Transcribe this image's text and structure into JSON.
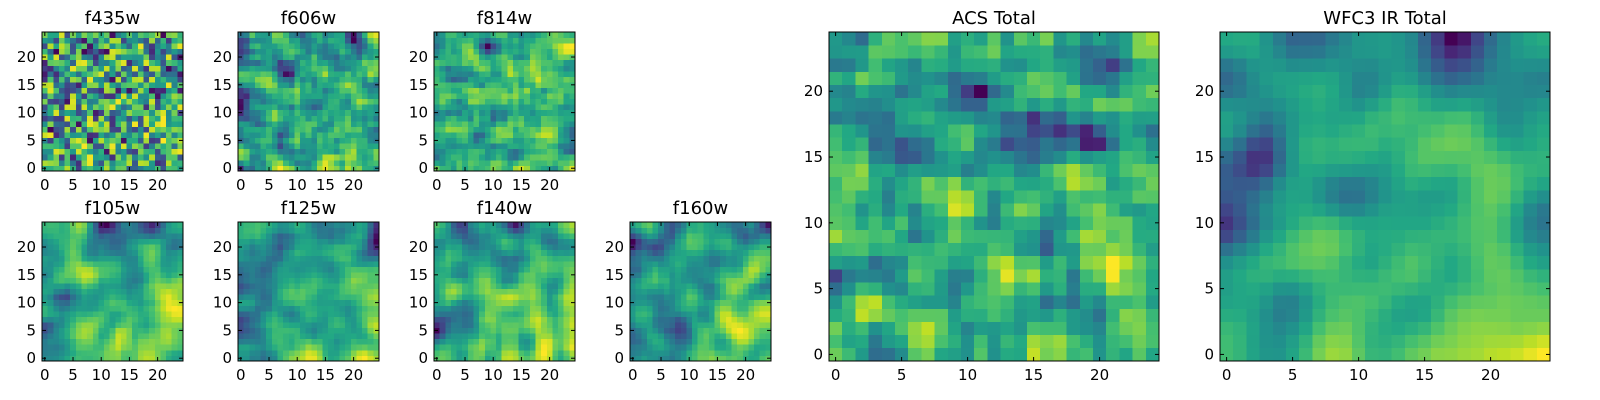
{
  "figure": {
    "background": "#ffffff"
  },
  "chart_data": [
    {
      "type": "heatmap",
      "title": "f435w",
      "size": 25,
      "colormap": "viridis",
      "seed": 11,
      "smooth": 0.1,
      "xticks": [
        0,
        5,
        10,
        15,
        20
      ],
      "yticks": [
        0,
        5,
        10,
        15,
        20
      ],
      "xlim": [
        -0.5,
        24.5
      ],
      "ylim": [
        -0.5,
        24.5
      ]
    },
    {
      "type": "heatmap",
      "title": "f606w",
      "size": 25,
      "colormap": "viridis",
      "seed": 23,
      "smooth": 0.35,
      "xticks": [
        0,
        5,
        10,
        15,
        20
      ],
      "yticks": [
        0,
        5,
        10,
        15,
        20
      ],
      "xlim": [
        -0.5,
        24.5
      ],
      "ylim": [
        -0.5,
        24.5
      ]
    },
    {
      "type": "heatmap",
      "title": "f814w",
      "size": 25,
      "colormap": "viridis",
      "seed": 37,
      "smooth": 0.25,
      "xticks": [
        0,
        5,
        10,
        15,
        20
      ],
      "yticks": [
        0,
        5,
        10,
        15,
        20
      ],
      "xlim": [
        -0.5,
        24.5
      ],
      "ylim": [
        -0.5,
        24.5
      ]
    },
    {
      "type": "heatmap",
      "title": "f105w",
      "size": 25,
      "colormap": "viridis",
      "seed": 41,
      "smooth": 0.8,
      "xticks": [
        0,
        5,
        10,
        15,
        20
      ],
      "yticks": [
        0,
        5,
        10,
        15,
        20
      ],
      "xlim": [
        -0.5,
        24.5
      ],
      "ylim": [
        -0.5,
        24.5
      ]
    },
    {
      "type": "heatmap",
      "title": "f125w",
      "size": 25,
      "colormap": "viridis",
      "seed": 53,
      "smooth": 0.75,
      "xticks": [
        0,
        5,
        10,
        15,
        20
      ],
      "yticks": [
        0,
        5,
        10,
        15,
        20
      ],
      "xlim": [
        -0.5,
        24.5
      ],
      "ylim": [
        -0.5,
        24.5
      ]
    },
    {
      "type": "heatmap",
      "title": "f140w",
      "size": 25,
      "colormap": "viridis",
      "seed": 67,
      "smooth": 0.7,
      "xticks": [
        0,
        5,
        10,
        15,
        20
      ],
      "yticks": [
        0,
        5,
        10,
        15,
        20
      ],
      "xlim": [
        -0.5,
        24.5
      ],
      "ylim": [
        -0.5,
        24.5
      ]
    },
    {
      "type": "heatmap",
      "title": "f160w",
      "size": 25,
      "colormap": "viridis",
      "seed": 79,
      "smooth": 0.65,
      "xticks": [
        0,
        5,
        10,
        15,
        20
      ],
      "yticks": [
        0,
        5,
        10,
        15,
        20
      ],
      "xlim": [
        -0.5,
        24.5
      ],
      "ylim": [
        -0.5,
        24.5
      ]
    },
    {
      "type": "heatmap",
      "title": "ACS Total",
      "size": 25,
      "colormap": "viridis",
      "seed": 97,
      "smooth": 0.3,
      "xticks": [
        0,
        5,
        10,
        15,
        20
      ],
      "yticks": [
        0,
        5,
        10,
        15,
        20
      ],
      "xlim": [
        -0.5,
        24.5
      ],
      "ylim": [
        -0.5,
        24.5
      ]
    },
    {
      "type": "heatmap",
      "title": "WFC3 IR Total",
      "size": 25,
      "colormap": "viridis",
      "seed": 113,
      "smooth": 0.85,
      "xticks": [
        0,
        5,
        10,
        15,
        20
      ],
      "yticks": [
        0,
        5,
        10,
        15,
        20
      ],
      "xlim": [
        -0.5,
        24.5
      ],
      "ylim": [
        -0.5,
        24.5
      ]
    }
  ]
}
